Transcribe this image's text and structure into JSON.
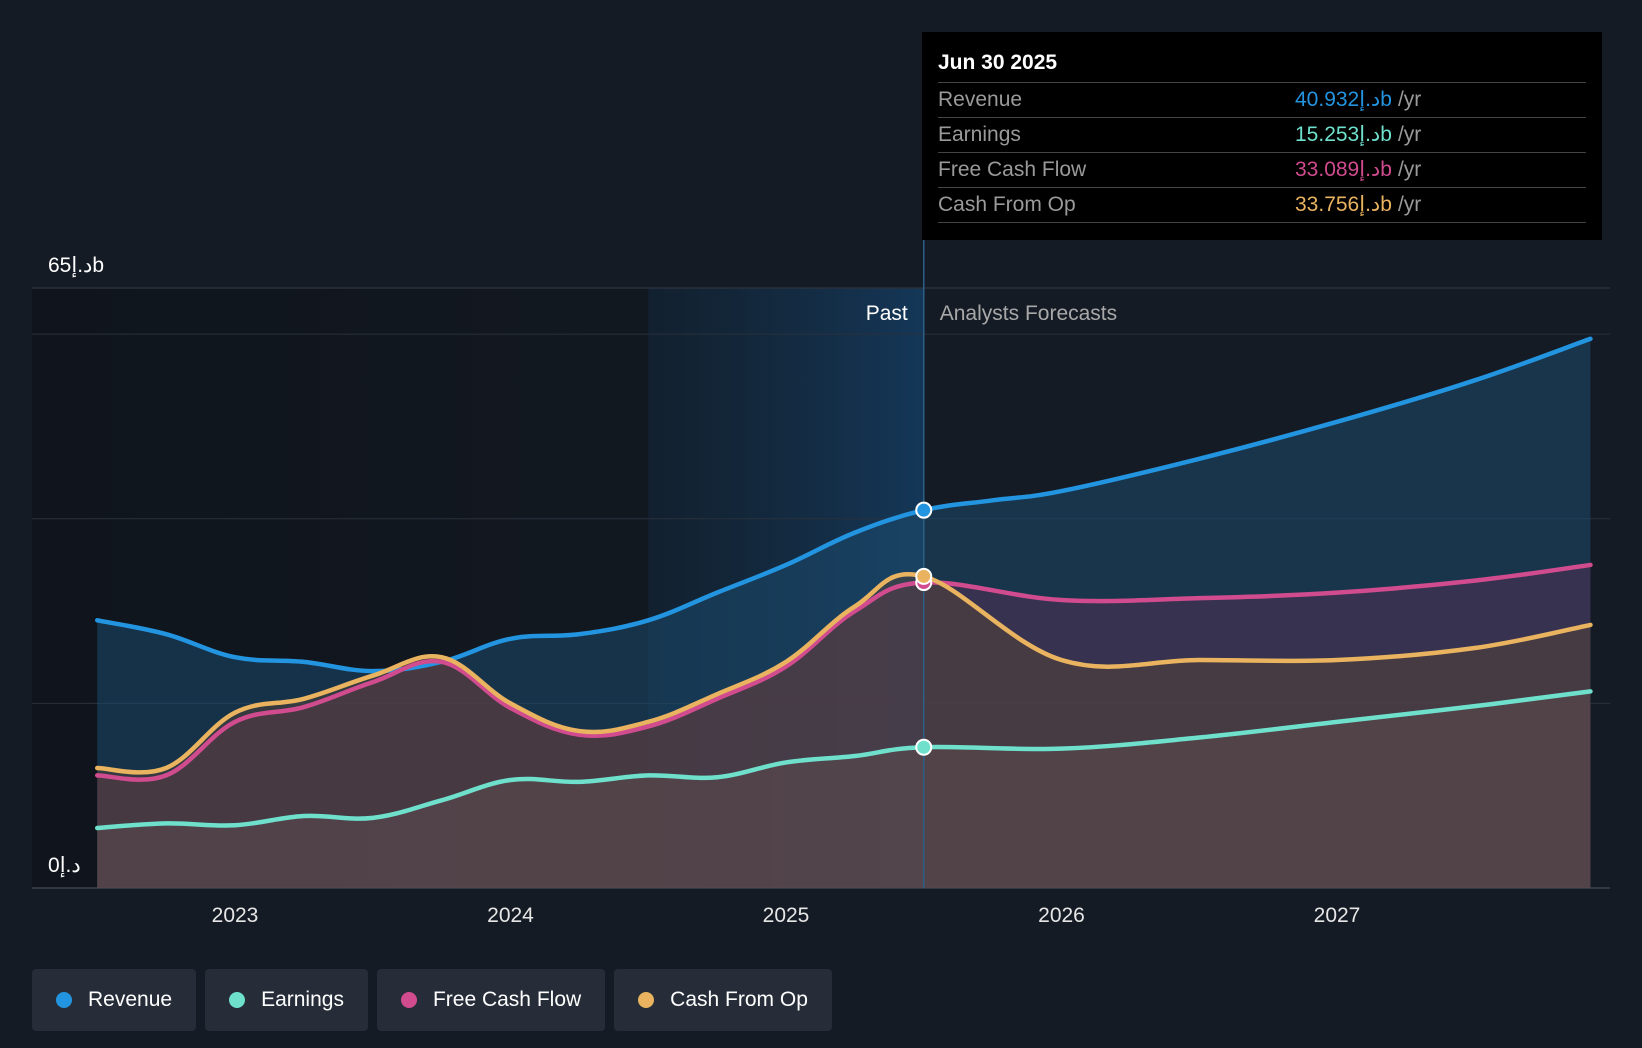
{
  "chart_data": {
    "type": "area",
    "x_range": [
      2022.5,
      2027.92
    ],
    "ylim": [
      0,
      65
    ],
    "y_unit": "د.إb",
    "y_tick_labels": {
      "top": "د.إ65b",
      "bottom": "د.إ0"
    },
    "x_tick_labels": [
      "2023",
      "2024",
      "2025",
      "2026",
      "2027"
    ],
    "x_ticks": [
      2023,
      2024,
      2025,
      2026,
      2027
    ],
    "past_label": "Past",
    "forecast_label": "Analysts Forecasts",
    "highlight_start": 2024.5,
    "divider_x": 2025.5,
    "series": [
      {
        "name": "Revenue",
        "color": "#2394e0",
        "points": [
          [
            2022.5,
            29
          ],
          [
            2022.75,
            27.5
          ],
          [
            2023.0,
            25
          ],
          [
            2023.25,
            24.5
          ],
          [
            2023.5,
            23.5
          ],
          [
            2023.75,
            24.5
          ],
          [
            2024.0,
            27
          ],
          [
            2024.25,
            27.5
          ],
          [
            2024.5,
            29
          ],
          [
            2024.75,
            32
          ],
          [
            2025.0,
            35
          ],
          [
            2025.25,
            38.5
          ],
          [
            2025.5,
            40.93
          ],
          [
            2025.75,
            42
          ],
          [
            2026.0,
            43
          ],
          [
            2026.5,
            46.5
          ],
          [
            2027.0,
            50.5
          ],
          [
            2027.5,
            55
          ],
          [
            2027.92,
            59.5
          ]
        ]
      },
      {
        "name": "Earnings",
        "color": "#6ee0cc",
        "points": [
          [
            2022.5,
            6.5
          ],
          [
            2022.75,
            7
          ],
          [
            2023.0,
            6.8
          ],
          [
            2023.25,
            7.8
          ],
          [
            2023.5,
            7.6
          ],
          [
            2023.75,
            9.5
          ],
          [
            2024.0,
            11.7
          ],
          [
            2024.25,
            11.5
          ],
          [
            2024.5,
            12.2
          ],
          [
            2024.75,
            12
          ],
          [
            2025.0,
            13.6
          ],
          [
            2025.25,
            14.3
          ],
          [
            2025.5,
            15.25
          ],
          [
            2026.0,
            15.1
          ],
          [
            2026.5,
            16.3
          ],
          [
            2027.0,
            18
          ],
          [
            2027.5,
            19.7
          ],
          [
            2027.92,
            21.3
          ]
        ]
      },
      {
        "name": "Free Cash Flow",
        "color": "#d14b8f",
        "points": [
          [
            2022.5,
            12.2
          ],
          [
            2022.75,
            12.2
          ],
          [
            2023.0,
            18
          ],
          [
            2023.25,
            19.6
          ],
          [
            2023.5,
            22.3
          ],
          [
            2023.75,
            24.5
          ],
          [
            2024.0,
            19.5
          ],
          [
            2024.25,
            16.6
          ],
          [
            2024.5,
            17.5
          ],
          [
            2024.75,
            20.5
          ],
          [
            2025.0,
            24
          ],
          [
            2025.25,
            30
          ],
          [
            2025.5,
            33.09
          ],
          [
            2026.0,
            31.2
          ],
          [
            2026.5,
            31.4
          ],
          [
            2027.0,
            32
          ],
          [
            2027.5,
            33.3
          ],
          [
            2027.92,
            35
          ]
        ]
      },
      {
        "name": "Cash From Op",
        "color": "#e9b35f",
        "points": [
          [
            2022.5,
            13
          ],
          [
            2022.75,
            13
          ],
          [
            2023.0,
            19
          ],
          [
            2023.25,
            20.5
          ],
          [
            2023.5,
            23
          ],
          [
            2023.75,
            25
          ],
          [
            2024.0,
            20
          ],
          [
            2024.25,
            17
          ],
          [
            2024.5,
            18
          ],
          [
            2024.75,
            21
          ],
          [
            2025.0,
            24.5
          ],
          [
            2025.25,
            30.5
          ],
          [
            2025.5,
            33.76
          ],
          [
            2026.0,
            24.7
          ],
          [
            2026.5,
            24.7
          ],
          [
            2027.0,
            24.7
          ],
          [
            2027.5,
            26
          ],
          [
            2027.92,
            28.5
          ]
        ]
      }
    ]
  },
  "tooltip": {
    "date": "Jun 30 2025",
    "unit": "/yr",
    "rows": [
      {
        "name": "Revenue",
        "value": "د.إ40.932b",
        "color": "#2394e0"
      },
      {
        "name": "Earnings",
        "value": "د.إ15.253b",
        "color": "#6ee0cc"
      },
      {
        "name": "Free Cash Flow",
        "value": "د.إ33.089b",
        "color": "#d14b8f"
      },
      {
        "name": "Cash From Op",
        "value": "د.إ33.756b",
        "color": "#e9b35f"
      }
    ]
  },
  "legend": [
    {
      "label": "Revenue",
      "color": "#2394e0"
    },
    {
      "label": "Earnings",
      "color": "#6ee0cc"
    },
    {
      "label": "Free Cash Flow",
      "color": "#d14b8f"
    },
    {
      "label": "Cash From Op",
      "color": "#e9b35f"
    }
  ]
}
